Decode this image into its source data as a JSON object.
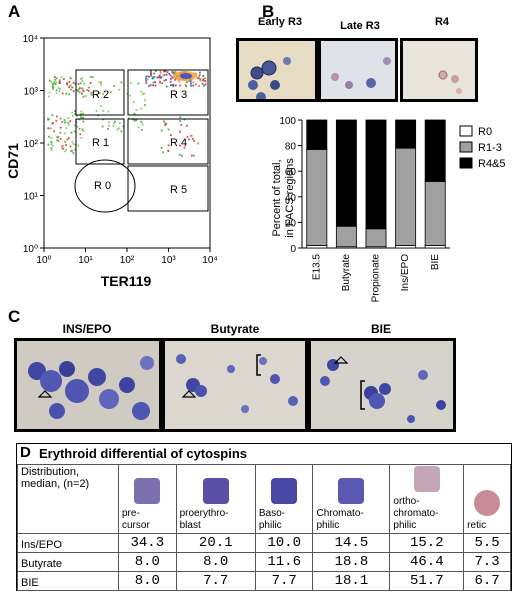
{
  "panels": {
    "a": "A",
    "b": "B",
    "c": "C",
    "d": "D"
  },
  "panel_a": {
    "ylabel": "CD71",
    "xlabel": "TER119",
    "x_ticks": [
      "10⁰",
      "10¹",
      "10²",
      "10³",
      "10⁴"
    ],
    "y_ticks": [
      "10⁰",
      "10¹",
      "10²",
      "10³",
      "10⁴"
    ],
    "gates": [
      "R 2",
      "R 3",
      "R 1",
      "R 4",
      "R 0",
      "R 5"
    ]
  },
  "panel_b_images": {
    "labels": [
      "Early R3",
      "Late R3",
      "R4"
    ]
  },
  "chart_data": {
    "type": "bar",
    "stacked": true,
    "categories": [
      "E13.5",
      "Butyrate",
      "Propionate",
      "Ins/EPO",
      "BIE"
    ],
    "series": [
      {
        "name": "R0",
        "values": [
          2,
          1,
          1,
          2,
          2
        ],
        "color": "#ffffff"
      },
      {
        "name": "R1-3",
        "values": [
          75,
          16,
          14,
          76,
          50
        ],
        "color": "#a0a0a0"
      },
      {
        "name": "R4&5",
        "values": [
          23,
          83,
          85,
          22,
          48
        ],
        "color": "#000000"
      }
    ],
    "ylabel": "Percent of total, in FACS regions",
    "ylabel_lines": [
      "Percent of total,",
      "in FACS regions"
    ],
    "ylim": [
      0,
      100
    ],
    "y_ticks": [
      "0",
      "20",
      "40",
      "60",
      "80",
      "100"
    ],
    "legend_position": "right"
  },
  "panel_c": {
    "labels": [
      "INS/EPO",
      "Butyrate",
      "BIE"
    ]
  },
  "panel_d": {
    "title": "Erythroid differential of cytospins",
    "header_label": "Distribution, median, (n=2)",
    "columns": [
      "pre-cursor",
      "proerythro-blast",
      "Baso-philic",
      "Chromato-philic",
      "ortho-chromato-philic",
      "retic"
    ],
    "column_lines": [
      [
        "pre-",
        "cursor"
      ],
      [
        "proerythro-",
        "blast"
      ],
      [
        "Baso-",
        "philic"
      ],
      [
        "Chromato-",
        "philic"
      ],
      [
        "ortho-",
        "chromato-",
        "philic"
      ],
      [
        "retic"
      ]
    ],
    "cell_colors": [
      "#7c6fae",
      "#5b4fa8",
      "#4a48a6",
      "#5a58b2",
      "#c3a7b6",
      "#c98b98"
    ],
    "rows": [
      {
        "label": "Ins/EPO",
        "values": [
          "34.3",
          "20.1",
          "10.0",
          "14.5",
          "15.2",
          "5.5"
        ]
      },
      {
        "label": "Butyrate",
        "values": [
          "8.0",
          "8.0",
          "11.6",
          "18.8",
          "46.4",
          "7.3"
        ]
      },
      {
        "label": "BIE",
        "values": [
          "8.0",
          "7.7",
          "7.7",
          "18.1",
          "51.7",
          "6.7"
        ]
      }
    ]
  }
}
